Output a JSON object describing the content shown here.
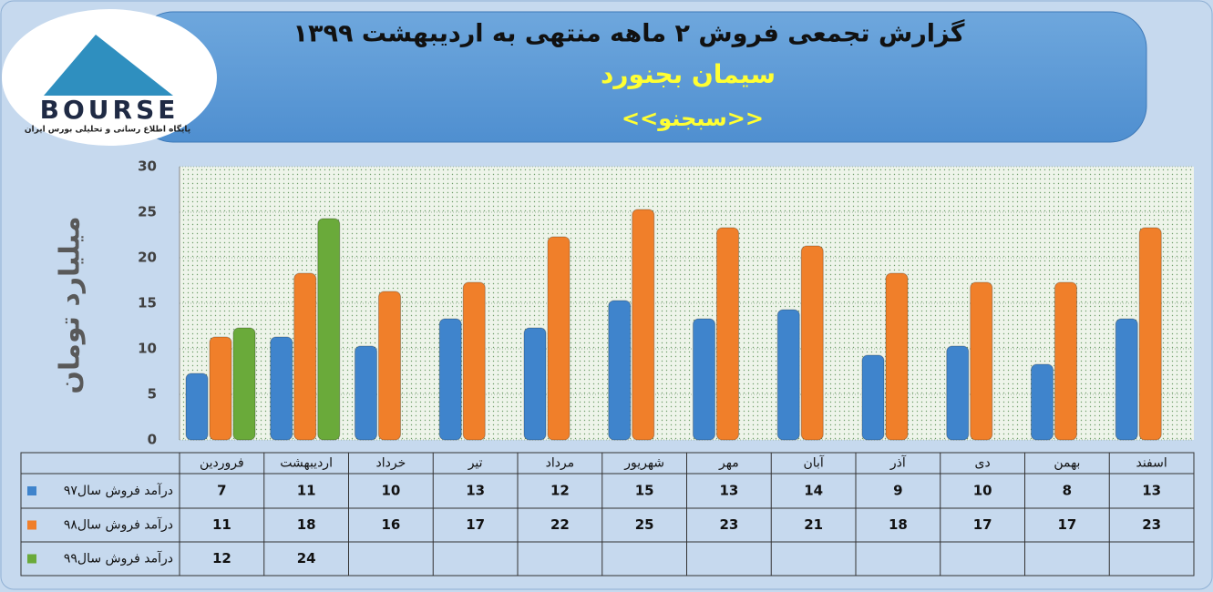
{
  "logo": {
    "name": "BOURSE",
    "tagline": "پایگاه اطلاع رسانی و تحلیلی بورس ایران"
  },
  "chart_data": {
    "type": "bar",
    "title": "گزارش تجمعی فروش  ۲ ماهه منتهی به اردیبهشت ۱۳۹۹",
    "subtitle": "سیمان بجنورد",
    "symbol": "<<سبجنو>>",
    "y_label": "میلیارد تومان",
    "categories": [
      "فروردین",
      "اردیبهشت",
      "خرداد",
      "تیر",
      "مرداد",
      "شهریور",
      "مهر",
      "آبان",
      "آذر",
      "دی",
      "بهمن",
      "اسفند"
    ],
    "series": [
      {
        "name": "درآمد فروش سال۹۷",
        "color": "#3f84cc",
        "values": [
          7,
          11,
          10,
          13,
          12,
          15,
          13,
          14,
          9,
          10,
          8,
          13
        ]
      },
      {
        "name": "درآمد فروش سال۹۸",
        "color": "#f07f2a",
        "values": [
          11,
          18,
          16,
          17,
          22,
          25,
          23,
          21,
          18,
          17,
          17,
          23
        ]
      },
      {
        "name": "درآمد فروش سال۹۹",
        "color": "#6aaa3a",
        "values": [
          12,
          24,
          null,
          null,
          null,
          null,
          null,
          null,
          null,
          null,
          null,
          null
        ]
      }
    ],
    "ylim": [
      0,
      30
    ],
    "yticks": [
      0,
      5,
      10,
      15,
      20,
      25,
      30
    ],
    "grid": true
  }
}
